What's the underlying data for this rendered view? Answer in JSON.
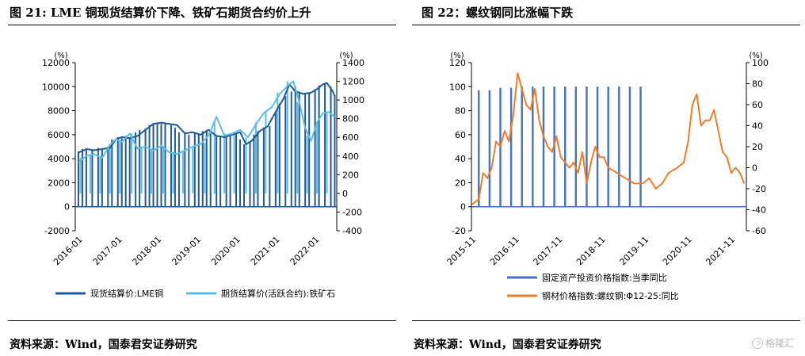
{
  "chart_data": [
    {
      "type": "line",
      "title": "图 21: LME 铜现货结算价下降、铁矿石期货合约价上升",
      "source": "资料来源：Wind，国泰君安证券研究",
      "left_unit": "(%)",
      "right_unit": "(%)",
      "left_axis": {
        "min": -2000,
        "max": 12000,
        "ticks": [
          "-2000",
          "0",
          "2000",
          "4000",
          "6000",
          "8000",
          "10000",
          "12000"
        ]
      },
      "right_axis": {
        "min": -400,
        "max": 1400,
        "ticks": [
          "-400",
          "-200",
          "0",
          "200",
          "400",
          "600",
          "800",
          "1000",
          "1200",
          "1400"
        ]
      },
      "x_ticks": [
        "2016-01",
        "2017-01",
        "2018-01",
        "2019-01",
        "2020-01",
        "2021-01",
        "2022-01"
      ],
      "x_range": [
        2015.92,
        2022.55
      ],
      "legend_position": "bottom",
      "grid": false,
      "series": [
        {
          "name": "现货结算价:LME铜",
          "axis": "left",
          "color": "#1f5a96",
          "x": [
            2016.0,
            2016.2,
            2016.4,
            2016.6,
            2016.8,
            2016.95,
            2017.1,
            2017.3,
            2017.5,
            2017.7,
            2017.9,
            2018.1,
            2018.3,
            2018.5,
            2018.7,
            2018.9,
            2019.1,
            2019.3,
            2019.5,
            2019.7,
            2019.9,
            2020.1,
            2020.25,
            2020.4,
            2020.6,
            2020.8,
            2021.0,
            2021.2,
            2021.35,
            2021.5,
            2021.7,
            2021.9,
            2022.05,
            2022.2,
            2022.3,
            2022.45,
            2022.5
          ],
          "y": [
            4500,
            4800,
            4700,
            4800,
            4900,
            5600,
            5800,
            5700,
            5900,
            6400,
            6900,
            7000,
            6900,
            6800,
            6100,
            6200,
            6000,
            6400,
            5900,
            5800,
            6000,
            6200,
            5200,
            5500,
            6300,
            6700,
            7900,
            9000,
            10200,
            9600,
            9400,
            9500,
            9800,
            10200,
            10300,
            9600,
            9200
          ]
        },
        {
          "name": "期货结算价(活跃合约):铁矿石",
          "axis": "right",
          "color": "#5dbbe6",
          "x": [
            2016.0,
            2016.2,
            2016.4,
            2016.6,
            2016.8,
            2016.95,
            2017.1,
            2017.3,
            2017.5,
            2017.7,
            2017.9,
            2018.1,
            2018.3,
            2018.5,
            2018.7,
            2018.9,
            2019.1,
            2019.3,
            2019.5,
            2019.7,
            2019.9,
            2020.1,
            2020.3,
            2020.5,
            2020.7,
            2020.9,
            2021.1,
            2021.3,
            2021.45,
            2021.6,
            2021.75,
            2021.9,
            2022.05,
            2022.2,
            2022.35,
            2022.5
          ],
          "y": [
            330,
            400,
            420,
            380,
            520,
            580,
            550,
            640,
            480,
            500,
            460,
            510,
            440,
            420,
            460,
            500,
            530,
            620,
            820,
            620,
            640,
            680,
            600,
            740,
            860,
            920,
            1060,
            1150,
            1200,
            980,
            700,
            560,
            760,
            860,
            870,
            820
          ]
        }
      ],
      "bars": {
        "name": "现货结算价:LME铜",
        "color": "#1f5a96",
        "x": [
          2016.0,
          2016.1,
          2016.2,
          2016.35,
          2016.5,
          2016.6,
          2016.75,
          2016.85,
          2017.0,
          2017.1,
          2017.2,
          2017.3,
          2017.45,
          2017.55,
          2017.7,
          2017.8,
          2017.9,
          2018.0,
          2018.1,
          2018.2,
          2018.35,
          2018.45,
          2018.55,
          2018.7,
          2018.8,
          2018.95,
          2019.05,
          2019.15,
          2019.25,
          2019.35,
          2019.5,
          2019.6,
          2019.75,
          2019.85,
          2020.0,
          2020.1,
          2020.2,
          2020.35,
          2020.45,
          2020.55,
          2020.7,
          2020.85,
          2021.0,
          2021.1,
          2021.25,
          2021.4,
          2021.5,
          2021.6,
          2021.75,
          2021.85,
          2022.0,
          2022.1,
          2022.25,
          2022.4,
          2022.5
        ],
        "y": [
          4600,
          4800,
          4700,
          4700,
          4900,
          4800,
          5000,
          5600,
          5800,
          5700,
          5900,
          5800,
          6200,
          6400,
          6500,
          6800,
          6900,
          7000,
          6900,
          6900,
          6800,
          6600,
          6200,
          6100,
          6000,
          6200,
          6000,
          6300,
          6400,
          6100,
          5900,
          5800,
          5800,
          5900,
          6100,
          5600,
          5200,
          5400,
          6000,
          6300,
          6600,
          6700,
          7900,
          8600,
          9200,
          9600,
          10000,
          9600,
          9400,
          9500,
          9800,
          10100,
          10300,
          10000,
          9300
        ]
      },
      "bars_secondary": {
        "name": "期货结算价(活跃合约):铁矿石",
        "color": "#5dbbe6",
        "x": [
          2016.05,
          2016.3,
          2016.55,
          2016.8,
          2017.05,
          2017.35,
          2017.6,
          2017.85,
          2018.15,
          2018.4,
          2018.65,
          2018.9,
          2019.2,
          2019.45,
          2019.7,
          2019.95,
          2020.25,
          2020.5,
          2020.75,
          2021.05,
          2021.3,
          2021.55,
          2021.8,
          2022.05,
          2022.3
        ],
        "y": [
          380,
          420,
          400,
          520,
          560,
          640,
          500,
          480,
          510,
          440,
          460,
          500,
          540,
          780,
          640,
          660,
          600,
          760,
          880,
          1080,
          1200,
          980,
          620,
          760,
          860
        ]
      }
    },
    {
      "type": "line",
      "title": "图 22：螺纹钢同比涨幅下跌",
      "source": "资料来源：Wind，国泰君安证券研究",
      "left_unit": "(%)",
      "right_unit": "(%)",
      "left_axis": {
        "min": -20,
        "max": 120,
        "ticks": [
          "-20",
          "0",
          "20",
          "40",
          "60",
          "80",
          "100",
          "120"
        ]
      },
      "right_axis": {
        "min": -60,
        "max": 100,
        "ticks": [
          "-60",
          "-40",
          "-20",
          "0",
          "20",
          "40",
          "60",
          "80",
          "100"
        ]
      },
      "x_ticks": [
        "2015-11",
        "2016-11",
        "2017-11",
        "2018-11",
        "2019-11",
        "2020-11",
        "2021-11"
      ],
      "x_range": [
        2015.83,
        2022.2
      ],
      "legend_position": "bottom",
      "grid": false,
      "series": [
        {
          "name": "钢材价格指数:螺纹钢:Φ12-25:同比",
          "axis": "right",
          "color": "#ee7d2b",
          "x": [
            2015.84,
            2016.0,
            2016.1,
            2016.2,
            2016.3,
            2016.4,
            2016.5,
            2016.6,
            2016.7,
            2016.8,
            2016.9,
            2017.0,
            2017.1,
            2017.2,
            2017.3,
            2017.4,
            2017.5,
            2017.6,
            2017.7,
            2017.8,
            2017.9,
            2018.0,
            2018.1,
            2018.2,
            2018.3,
            2018.4,
            2018.5,
            2018.6,
            2018.7,
            2018.8,
            2018.9,
            2019.0,
            2019.2,
            2019.4,
            2019.6,
            2019.8,
            2019.95,
            2020.1,
            2020.25,
            2020.4,
            2020.6,
            2020.75,
            2020.85,
            2020.95,
            2021.05,
            2021.15,
            2021.25,
            2021.35,
            2021.45,
            2021.55,
            2021.65,
            2021.75,
            2021.85,
            2021.95,
            2022.05,
            2022.15
          ],
          "y": [
            -35,
            -30,
            -5,
            -10,
            0,
            25,
            20,
            35,
            25,
            50,
            90,
            75,
            60,
            55,
            75,
            45,
            30,
            20,
            15,
            30,
            10,
            5,
            0,
            5,
            -5,
            15,
            -15,
            5,
            20,
            10,
            10,
            0,
            -5,
            -10,
            -15,
            -15,
            -10,
            -20,
            -15,
            -5,
            0,
            5,
            25,
            60,
            70,
            40,
            45,
            45,
            55,
            35,
            15,
            10,
            -5,
            0,
            -5,
            -15
          ]
        }
      ],
      "bars": {
        "name": "固定资产投资价格指数:当季同比",
        "color": "#4572c4",
        "x": [
          2016.0,
          2016.25,
          2016.5,
          2016.75,
          2017.0,
          2017.25,
          2017.5,
          2017.75,
          2018.0,
          2018.25,
          2018.5,
          2018.75,
          2019.0,
          2019.25,
          2019.5,
          2019.75
        ],
        "y": [
          97,
          97,
          99,
          99,
          100,
          100,
          100,
          100,
          100,
          100,
          100,
          100,
          100,
          100,
          100,
          100
        ]
      }
    }
  ]
}
